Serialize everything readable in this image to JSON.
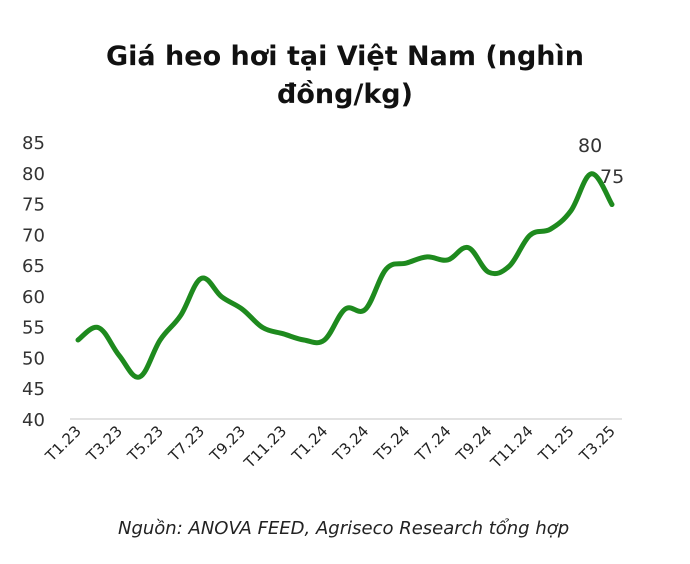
{
  "title": "Giá heo hơi tại Việt Nam (nghìn đồng/kg)",
  "source": "Nguồn: ANOVA FEED, Agriseco Research tổng hợp",
  "colors": {
    "line": "#1e8a1e",
    "axis": "#d9d9d9",
    "text": "#333333"
  },
  "chart_data": {
    "type": "line",
    "title": "Giá heo hơi tại Việt Nam (nghìn đồng/kg)",
    "xlabel": "",
    "ylabel": "",
    "ylim": [
      40,
      85
    ],
    "yticks": [
      40,
      45,
      50,
      55,
      60,
      65,
      70,
      75,
      80,
      85
    ],
    "grid": false,
    "legend": null,
    "x_tick_labels": [
      "T1.23",
      "T3.23",
      "T5.23",
      "T7.23",
      "T9.23",
      "T11.23",
      "T1.24",
      "T3.24",
      "T5.24",
      "T7.24",
      "T9.24",
      "T11.24",
      "T1.25",
      "T3.25"
    ],
    "x": [
      "T1.23",
      "T2.23",
      "T3.23",
      "T4.23",
      "T5.23",
      "T6.23",
      "T7.23",
      "T8.23",
      "T9.23",
      "T10.23",
      "T11.23",
      "T12.23",
      "T1.24",
      "T2.24",
      "T3.24",
      "T4.24",
      "T5.24",
      "T6.24",
      "T7.24",
      "T8.24",
      "T9.24",
      "T10.24",
      "T11.24",
      "T12.24",
      "T1.25",
      "T2.25",
      "T3.25"
    ],
    "series": [
      {
        "name": "Giá heo hơi",
        "color": "#1e8a1e",
        "values": [
          53,
          55,
          50.5,
          47,
          53,
          57,
          63,
          60,
          58,
          55,
          54,
          53,
          53,
          58,
          58,
          64.5,
          65.5,
          66.5,
          66,
          68,
          64,
          65,
          70,
          71,
          74,
          80,
          75
        ]
      }
    ],
    "annotations": [
      {
        "x": "T2.25",
        "text": "80"
      },
      {
        "x": "T3.25",
        "text": "75"
      }
    ]
  }
}
